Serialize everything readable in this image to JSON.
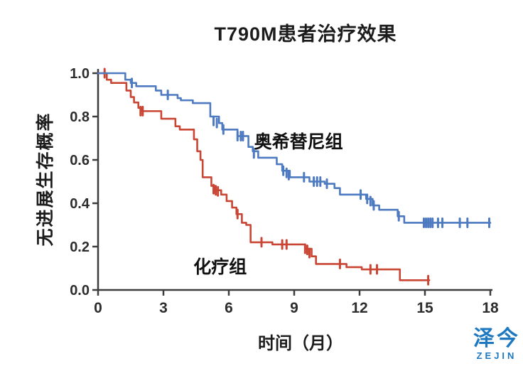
{
  "title": "T790M患者治疗效果",
  "chart_data": {
    "type": "line",
    "subtype": "kaplan-meier-step",
    "title": "T790M患者治疗效果",
    "xlabel": "时间（月）",
    "ylabel": "无进展生存概率",
    "xlim": [
      0,
      18
    ],
    "ylim": [
      0.0,
      1.0
    ],
    "xticks": [
      "0",
      "3",
      "6",
      "9",
      "12",
      "15",
      "18"
    ],
    "yticks": [
      "0.0",
      "0.2",
      "0.4",
      "0.6",
      "0.8",
      "1.0"
    ],
    "grid": false,
    "legend_position": "inline-labels",
    "axis_color": "#3d3d3d",
    "tick_label_color": "#2d2d2d",
    "series": [
      {
        "name": "化疗组",
        "color": "#c94534",
        "end_t": 15.2,
        "label_anchor": {
          "t": 5.6,
          "v": 0.11
        },
        "steps": [
          [
            0,
            1.0
          ],
          [
            0.4,
            0.97
          ],
          [
            0.6,
            0.955
          ],
          [
            1.3,
            0.92
          ],
          [
            1.5,
            0.89
          ],
          [
            1.65,
            0.865
          ],
          [
            1.85,
            0.84
          ],
          [
            2.0,
            0.825
          ],
          [
            2.9,
            0.79
          ],
          [
            3.55,
            0.755
          ],
          [
            3.75,
            0.74
          ],
          [
            4.4,
            0.695
          ],
          [
            4.55,
            0.64
          ],
          [
            4.7,
            0.6
          ],
          [
            4.8,
            0.52
          ],
          [
            5.2,
            0.48
          ],
          [
            5.35,
            0.46
          ],
          [
            5.65,
            0.44
          ],
          [
            5.9,
            0.41
          ],
          [
            6.15,
            0.38
          ],
          [
            6.35,
            0.35
          ],
          [
            6.6,
            0.31
          ],
          [
            6.8,
            0.3
          ],
          [
            7.0,
            0.22
          ],
          [
            8.0,
            0.21
          ],
          [
            9.5,
            0.19
          ],
          [
            9.8,
            0.155
          ],
          [
            10.0,
            0.12
          ],
          [
            11.4,
            0.105
          ],
          [
            12.1,
            0.095
          ],
          [
            13.85,
            0.045
          ]
        ],
        "censors": [
          [
            0.3,
            1.0
          ],
          [
            1.95,
            0.825
          ],
          [
            2.05,
            0.825
          ],
          [
            5.3,
            0.465
          ],
          [
            5.4,
            0.46
          ],
          [
            5.5,
            0.455
          ],
          [
            6.4,
            0.35
          ],
          [
            7.5,
            0.22
          ],
          [
            8.45,
            0.21
          ],
          [
            8.65,
            0.21
          ],
          [
            9.5,
            0.19
          ],
          [
            9.6,
            0.185
          ],
          [
            9.7,
            0.17
          ],
          [
            11.1,
            0.12
          ],
          [
            12.5,
            0.095
          ],
          [
            12.8,
            0.095
          ],
          [
            15.15,
            0.045
          ]
        ]
      },
      {
        "name": "奥希替尼组",
        "color": "#4d7ac0",
        "end_t": 18,
        "label_anchor": {
          "t": 9.2,
          "v": 0.69
        },
        "steps": [
          [
            0,
            1.0
          ],
          [
            1.25,
            0.97
          ],
          [
            1.5,
            0.955
          ],
          [
            1.75,
            0.94
          ],
          [
            2.65,
            0.92
          ],
          [
            2.9,
            0.9
          ],
          [
            3.65,
            0.885
          ],
          [
            3.8,
            0.875
          ],
          [
            4.35,
            0.862
          ],
          [
            5.15,
            0.8
          ],
          [
            5.55,
            0.77
          ],
          [
            5.7,
            0.74
          ],
          [
            6.4,
            0.71
          ],
          [
            6.9,
            0.66
          ],
          [
            7.1,
            0.64
          ],
          [
            7.35,
            0.61
          ],
          [
            8.2,
            0.58
          ],
          [
            8.45,
            0.55
          ],
          [
            8.8,
            0.52
          ],
          [
            9.7,
            0.5
          ],
          [
            10.4,
            0.49
          ],
          [
            10.85,
            0.47
          ],
          [
            11.1,
            0.44
          ],
          [
            12.3,
            0.42
          ],
          [
            12.6,
            0.39
          ],
          [
            12.9,
            0.37
          ],
          [
            13.75,
            0.34
          ],
          [
            14.05,
            0.31
          ]
        ],
        "censors": [
          [
            1.55,
            0.955
          ],
          [
            3.2,
            0.9
          ],
          [
            5.3,
            0.78
          ],
          [
            5.45,
            0.77
          ],
          [
            5.75,
            0.74
          ],
          [
            6.4,
            0.71
          ],
          [
            6.55,
            0.71
          ],
          [
            6.65,
            0.71
          ],
          [
            7.15,
            0.63
          ],
          [
            8.5,
            0.55
          ],
          [
            8.65,
            0.54
          ],
          [
            8.75,
            0.53
          ],
          [
            9.45,
            0.52
          ],
          [
            9.9,
            0.5
          ],
          [
            10.05,
            0.5
          ],
          [
            10.2,
            0.5
          ],
          [
            10.5,
            0.49
          ],
          [
            12.05,
            0.44
          ],
          [
            12.35,
            0.42
          ],
          [
            12.5,
            0.41
          ],
          [
            12.65,
            0.39
          ],
          [
            13.8,
            0.34
          ],
          [
            14.95,
            0.31
          ],
          [
            15.05,
            0.31
          ],
          [
            15.15,
            0.31
          ],
          [
            15.25,
            0.31
          ],
          [
            15.35,
            0.31
          ],
          [
            15.6,
            0.31
          ],
          [
            15.8,
            0.31
          ],
          [
            16.6,
            0.31
          ],
          [
            16.95,
            0.31
          ],
          [
            17.95,
            0.31
          ]
        ]
      }
    ]
  },
  "branding": {
    "logo_zh": "泽今",
    "logo_en": "ZEJIN",
    "color": "#1d78c0"
  }
}
